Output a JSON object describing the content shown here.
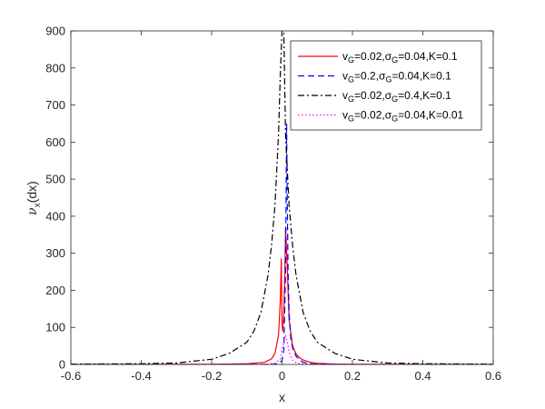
{
  "chart_data": {
    "type": "line",
    "xlabel": "x",
    "ylabel": "ν_x(dx)",
    "xlim": [
      -0.6,
      0.6
    ],
    "ylim": [
      0,
      900
    ],
    "xticks": [
      "-0.6",
      "-0.4",
      "-0.2",
      "0",
      "0.2",
      "0.4",
      "0.6"
    ],
    "yticks": [
      "0",
      "100",
      "200",
      "300",
      "400",
      "500",
      "600",
      "700",
      "800",
      "900"
    ],
    "grid": false,
    "legend_position": "top-right",
    "series": [
      {
        "name": "v_G=0.02,σ_G=0.04,K=0.1",
        "legend": {
          "v": "v",
          "vsub": "G",
          "p1": "=0.02,",
          "s": "σ",
          "ssub": "G",
          "p2": "=0.04,K=0.1"
        },
        "color": "#ff0000",
        "dash": "solid",
        "x": [
          -0.6,
          -0.2,
          -0.1,
          -0.05,
          -0.03,
          -0.02,
          -0.01,
          -0.005,
          -0.002,
          0.0,
          0.002,
          0.005,
          0.008,
          0.01,
          0.015,
          0.02,
          0.03,
          0.04,
          0.05,
          0.06,
          0.08,
          0.1,
          0.15,
          0.2,
          0.6
        ],
        "y": [
          0,
          0.5,
          2,
          6,
          15,
          30,
          80,
          170,
          285,
          110,
          90,
          140,
          250,
          370,
          260,
          120,
          50,
          28,
          18,
          12,
          6,
          3,
          1,
          0.3,
          0
        ]
      },
      {
        "name": "v_G=0.2,σ_G=0.04,K=0.1",
        "legend": {
          "v": "v",
          "vsub": "G",
          "p1": "=0.2,",
          "s": "σ",
          "ssub": "G",
          "p2": "=0.04,K=0.1"
        },
        "color": "#0000ff",
        "dash": "dashed",
        "x": [
          -0.6,
          -0.05,
          -0.02,
          -0.01,
          0.0,
          0.005,
          0.01,
          0.013,
          0.015,
          0.017,
          0.02,
          0.025,
          0.03,
          0.04,
          0.05,
          0.06,
          0.08,
          0.1,
          0.2,
          0.6
        ],
        "y": [
          0,
          0.3,
          1,
          3,
          10,
          40,
          250,
          650,
          430,
          260,
          140,
          70,
          45,
          22,
          12,
          6,
          2,
          1,
          0.2,
          0
        ]
      },
      {
        "name": "v_G=0.02,σ_G=0.4,K=0.1",
        "legend": {
          "v": "v",
          "vsub": "G",
          "p1": "=0.02,",
          "s": "σ",
          "ssub": "G",
          "p2": "=0.4,K=0.1"
        },
        "color": "#000000",
        "dash": "dashdot",
        "x": [
          -0.6,
          -0.4,
          -0.3,
          -0.2,
          -0.15,
          -0.1,
          -0.08,
          -0.06,
          -0.04,
          -0.03,
          -0.02,
          -0.01,
          -0.005,
          0.0,
          0.005,
          0.01,
          0.02,
          0.03,
          0.04,
          0.06,
          0.08,
          0.1,
          0.15,
          0.2,
          0.3,
          0.4,
          0.6
        ],
        "y": [
          1,
          2,
          4,
          14,
          30,
          60,
          90,
          140,
          240,
          320,
          430,
          620,
          780,
          900,
          900,
          620,
          430,
          320,
          240,
          140,
          90,
          60,
          30,
          14,
          4,
          2,
          1
        ]
      },
      {
        "name": "v_G=0.02,σ_G=0.04,K=0.01",
        "legend": {
          "v": "v",
          "vsub": "G",
          "p1": "=0.02,",
          "s": "σ",
          "ssub": "G",
          "p2": "=0.04,K=0.01"
        },
        "color": "#ff00ff",
        "dash": "dotted",
        "x": [
          -0.6,
          -0.05,
          -0.02,
          -0.005,
          0.0,
          0.005,
          0.01,
          0.015,
          0.02,
          0.025,
          0.03,
          0.04,
          0.05,
          0.1,
          0.6
        ],
        "y": [
          0,
          0.5,
          3,
          15,
          40,
          60,
          80,
          60,
          35,
          20,
          12,
          5,
          2,
          0.5,
          0
        ]
      }
    ]
  }
}
